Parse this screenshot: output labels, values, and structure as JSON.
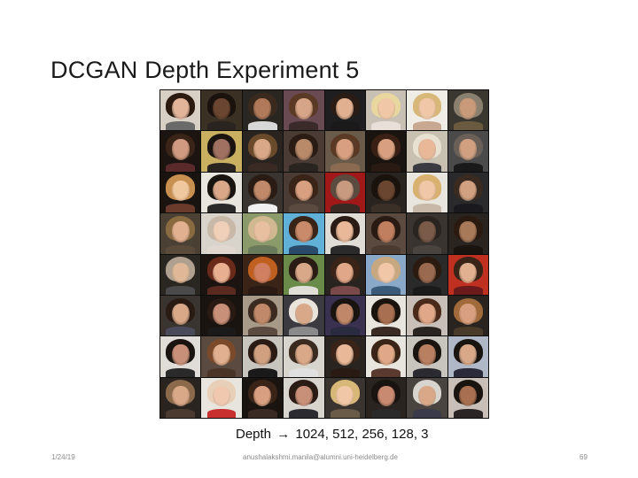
{
  "slide": {
    "title": "DCGAN Depth Experiment 5",
    "caption_prefix": "Depth",
    "caption_arrow": "→",
    "caption_values": "1024, 512, 256, 128, 3"
  },
  "footer": {
    "date": "1/24/19",
    "email": "anushalakshmi.manila@alumni.uni-heidelberg.de",
    "page_number": "69"
  },
  "colors": {
    "background": "#ffffff",
    "title_text": "#1a1a1a",
    "footer_text": "#8a8a8a",
    "grid_border": "#0d0d0d"
  },
  "image_grid": {
    "rows": 8,
    "columns": 8,
    "tiles": [
      {
        "bg": "#d8d0c4",
        "hair": "#2a1a10",
        "skin": "#e2b49a",
        "cloth": "#6a6a6a"
      },
      {
        "bg": "#3a3024",
        "hair": "#1a120c",
        "skin": "#6a4630",
        "cloth": "#2a2420"
      },
      {
        "bg": "#2a2622",
        "hair": "#3a2a1e",
        "skin": "#b07a5a",
        "cloth": "#d8d8d8"
      },
      {
        "bg": "#6a4a52",
        "hair": "#5a3a24",
        "skin": "#d6a486",
        "cloth": "#3a2a2a"
      },
      {
        "bg": "#1e1e20",
        "hair": "#2a1c14",
        "skin": "#e0b090",
        "cloth": "#1a1a1a"
      },
      {
        "bg": "#c8c0b4",
        "hair": "#e8d8a0",
        "skin": "#f0c8a8",
        "cloth": "#e8e0d8"
      },
      {
        "bg": "#f0ece6",
        "hair": "#d8b878",
        "skin": "#f0c8a8",
        "cloth": "#c8a890"
      },
      {
        "bg": "#3a3630",
        "hair": "#8a8070",
        "skin": "#c89a7a",
        "cloth": "#6a5a40"
      },
      {
        "bg": "#1c1410",
        "hair": "#3a2418",
        "skin": "#d09a80",
        "cloth": "#5a2a2a"
      },
      {
        "bg": "#c8b060",
        "hair": "#1a1410",
        "skin": "#a07060",
        "cloth": "#2a2420"
      },
      {
        "bg": "#2a2420",
        "hair": "#6a4a2a",
        "skin": "#d8a888",
        "cloth": "#3a2a24"
      },
      {
        "bg": "#4a3c34",
        "hair": "#2a1c14",
        "skin": "#b88a6a",
        "cloth": "#2a2420"
      },
      {
        "bg": "#6a5a4a",
        "hair": "#5a3a24",
        "skin": "#d8a080",
        "cloth": "#8a6a50"
      },
      {
        "bg": "#1a1410",
        "hair": "#3a2014",
        "skin": "#d8a080",
        "cloth": "#2a1a14"
      },
      {
        "bg": "#c8c0b0",
        "hair": "#e8e0d0",
        "skin": "#e8b898",
        "cloth": "#3a3a40"
      },
      {
        "bg": "#4a4a4a",
        "hair": "#6a6058",
        "skin": "#d0a080",
        "cloth": "#1a1a1a"
      },
      {
        "bg": "#1a1410",
        "hair": "#c89050",
        "skin": "#f0c8a0",
        "cloth": "#6a3a2a"
      },
      {
        "bg": "#e8e4de",
        "hair": "#1a1410",
        "skin": "#d8a888",
        "cloth": "#2a2a2a"
      },
      {
        "bg": "#3a3430",
        "hair": "#2a1c14",
        "skin": "#c08a6a",
        "cloth": "#f0f0f0"
      },
      {
        "bg": "#4a3c34",
        "hair": "#3a2418",
        "skin": "#d8a080",
        "cloth": "#5a4a40"
      },
      {
        "bg": "#a01818",
        "hair": "#5a4a40",
        "skin": "#c89a80",
        "cloth": "#3a2a24"
      },
      {
        "bg": "#2a2420",
        "hair": "#1a120c",
        "skin": "#6a4630",
        "cloth": "#3a3028"
      },
      {
        "bg": "#e8e4de",
        "hair": "#d8b070",
        "skin": "#f0c8a8",
        "cloth": "#c8b8a8"
      },
      {
        "bg": "#2a2a2c",
        "hair": "#3a2a20",
        "skin": "#d0a080",
        "cloth": "#1a1a1e"
      },
      {
        "bg": "#4a4034",
        "hair": "#8a6a40",
        "skin": "#e0b090",
        "cloth": "#5a4a3a"
      },
      {
        "bg": "#d8d4cc",
        "hair": "#c8b8a8",
        "skin": "#f0d0b8",
        "cloth": "#e0d8d0"
      },
      {
        "bg": "#8a9a6a",
        "hair": "#d0b890",
        "skin": "#e8c0a0",
        "cloth": "#6a7a5a"
      },
      {
        "bg": "#60b0d8",
        "hair": "#3a2418",
        "skin": "#c88a6a",
        "cloth": "#2a4a6a"
      },
      {
        "bg": "#e0dcd6",
        "hair": "#2a1c14",
        "skin": "#e8b898",
        "cloth": "#2a2a2a"
      },
      {
        "bg": "#5a4a40",
        "hair": "#2a1a14",
        "skin": "#c08060",
        "cloth": "#4a3a30"
      },
      {
        "bg": "#3a3430",
        "hair": "#2a2420",
        "skin": "#7a5a48",
        "cloth": "#4a4440"
      },
      {
        "bg": "#2a2420",
        "hair": "#2a1a10",
        "skin": "#a87a5a",
        "cloth": "#1a1410"
      },
      {
        "bg": "#2a2622",
        "hair": "#b0a090",
        "skin": "#e0b898",
        "cloth": "#4a4a4a"
      },
      {
        "bg": "#1c1410",
        "hair": "#6a2a1a",
        "skin": "#e8b090",
        "cloth": "#5a2a20"
      },
      {
        "bg": "#3a2418",
        "hair": "#c06020",
        "skin": "#d08060",
        "cloth": "#2a1a14"
      },
      {
        "bg": "#6a8a4a",
        "hair": "#2a1c14",
        "skin": "#d8a888",
        "cloth": "#e0e0d8"
      },
      {
        "bg": "#2a2420",
        "hair": "#3a2418",
        "skin": "#e0a888",
        "cloth": "#7a4a4a"
      },
      {
        "bg": "#8aa8c8",
        "hair": "#c8a880",
        "skin": "#f0c8a8",
        "cloth": "#3a5a7a"
      },
      {
        "bg": "#2a2a2a",
        "hair": "#2a1a10",
        "skin": "#9a6a50",
        "cloth": "#1a1a1a"
      },
      {
        "bg": "#c03020",
        "hair": "#3a2418",
        "skin": "#e0b090",
        "cloth": "#6a1a1a"
      },
      {
        "bg": "#3a3430",
        "hair": "#2a1a14",
        "skin": "#d8a888",
        "cloth": "#4a4a5a"
      },
      {
        "bg": "#1a1410",
        "hair": "#2a1a14",
        "skin": "#c89078",
        "cloth": "#1a1a1a"
      },
      {
        "bg": "#a89a88",
        "hair": "#3a2a20",
        "skin": "#c08a6a",
        "cloth": "#5a4a40"
      },
      {
        "bg": "#3a3a40",
        "hair": "#e8e4dc",
        "skin": "#d8a888",
        "cloth": "#8a8a8a"
      },
      {
        "bg": "#3a3050",
        "hair": "#1a1410",
        "skin": "#c08868",
        "cloth": "#2a2a40"
      },
      {
        "bg": "#e8e4de",
        "hair": "#1a120c",
        "skin": "#a87050",
        "cloth": "#3a2a24"
      },
      {
        "bg": "#c8c0b8",
        "hair": "#4a2a1a",
        "skin": "#e0a888",
        "cloth": "#2a2420"
      },
      {
        "bg": "#2a2420",
        "hair": "#a06a3a",
        "skin": "#d8a080",
        "cloth": "#4a3a2a"
      },
      {
        "bg": "#e0dcd8",
        "hair": "#1a1410",
        "skin": "#c89078",
        "cloth": "#2a2a2a"
      },
      {
        "bg": "#5a4a40",
        "hair": "#7a4a2a",
        "skin": "#e0b090",
        "cloth": "#4a3428"
      },
      {
        "bg": "#c8c4be",
        "hair": "#2a1c14",
        "skin": "#d0a080",
        "cloth": "#1a1a1a"
      },
      {
        "bg": "#d8d4ce",
        "hair": "#3a2a20",
        "skin": "#d8a888",
        "cloth": "#e0e0e0"
      },
      {
        "bg": "#2a2420",
        "hair": "#3a2418",
        "skin": "#e8b898",
        "cloth": "#2a1a14"
      },
      {
        "bg": "#e8e4de",
        "hair": "#3a2418",
        "skin": "#e0a888",
        "cloth": "#5a3a30"
      },
      {
        "bg": "#c8c4be",
        "hair": "#1a1410",
        "skin": "#b88060",
        "cloth": "#2a2a30"
      },
      {
        "bg": "#b0b8c8",
        "hair": "#1a1410",
        "skin": "#d8a888",
        "cloth": "#2a2a3a"
      },
      {
        "bg": "#2a2420",
        "hair": "#8a6a4a",
        "skin": "#d8a888",
        "cloth": "#4a3a30"
      },
      {
        "bg": "#e8e4de",
        "hair": "#e8d0b8",
        "skin": "#f0c8b0",
        "cloth": "#c83030"
      },
      {
        "bg": "#1a1410",
        "hair": "#3a2418",
        "skin": "#d8a080",
        "cloth": "#3a2a24"
      },
      {
        "bg": "#d8d4ce",
        "hair": "#2a1c14",
        "skin": "#c89078",
        "cloth": "#2a2a30"
      },
      {
        "bg": "#3a3430",
        "hair": "#d8b878",
        "skin": "#f0c8a8",
        "cloth": "#6a5a48"
      },
      {
        "bg": "#2a2420",
        "hair": "#1a1410",
        "skin": "#c88a70",
        "cloth": "#2a2a2a"
      },
      {
        "bg": "#4a4440",
        "hair": "#d8d4ce",
        "skin": "#d8a888",
        "cloth": "#3a3a4a"
      },
      {
        "bg": "#c8c0b8",
        "hair": "#1a1410",
        "skin": "#a87050",
        "cloth": "#2a2424"
      }
    ]
  }
}
